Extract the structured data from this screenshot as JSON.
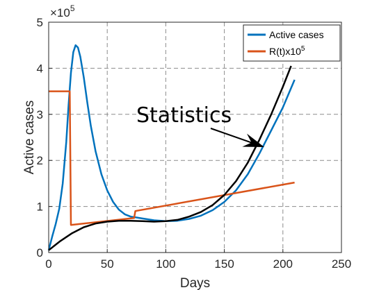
{
  "chart_data": {
    "type": "line",
    "xlabel": "Days",
    "ylabel": "Active cases",
    "xlim": [
      0,
      250
    ],
    "ylim": [
      0,
      5
    ],
    "y_multiplier": "×10",
    "y_multiplier_exp": "5",
    "x_ticks": [
      "0",
      "50",
      "100",
      "150",
      "200",
      "250"
    ],
    "y_ticks": [
      "0",
      "1",
      "2",
      "3",
      "4",
      "5"
    ],
    "grid": true,
    "legend_position": "top-right",
    "annotation": "Statistics",
    "series": [
      {
        "name": "Active cases",
        "color": "#0072BD",
        "points": [
          [
            0,
            0.05
          ],
          [
            3,
            0.35
          ],
          [
            6,
            0.62
          ],
          [
            9,
            0.95
          ],
          [
            12,
            1.5
          ],
          [
            15,
            2.4
          ],
          [
            17,
            3.2
          ],
          [
            19,
            3.9
          ],
          [
            21,
            4.35
          ],
          [
            23,
            4.5
          ],
          [
            25,
            4.45
          ],
          [
            27,
            4.25
          ],
          [
            30,
            3.8
          ],
          [
            33,
            3.25
          ],
          [
            36,
            2.75
          ],
          [
            40,
            2.2
          ],
          [
            45,
            1.7
          ],
          [
            50,
            1.35
          ],
          [
            55,
            1.1
          ],
          [
            60,
            0.93
          ],
          [
            65,
            0.83
          ],
          [
            70,
            0.78
          ],
          [
            75,
            0.76
          ],
          [
            80,
            0.74
          ],
          [
            90,
            0.7
          ],
          [
            100,
            0.68
          ],
          [
            110,
            0.69
          ],
          [
            120,
            0.73
          ],
          [
            130,
            0.8
          ],
          [
            140,
            0.92
          ],
          [
            150,
            1.1
          ],
          [
            160,
            1.35
          ],
          [
            170,
            1.7
          ],
          [
            180,
            2.15
          ],
          [
            190,
            2.65
          ],
          [
            200,
            3.15
          ],
          [
            205,
            3.45
          ],
          [
            210,
            3.75
          ]
        ]
      },
      {
        "name": "R(t)x10",
        "name_exp": "5",
        "color": "#D95319",
        "points": [
          [
            0,
            3.5
          ],
          [
            18,
            3.5
          ],
          [
            19,
            0.6
          ],
          [
            73,
            0.75
          ],
          [
            74,
            0.9
          ],
          [
            210,
            1.52
          ]
        ]
      },
      {
        "name": "Statistics",
        "color": "#000000",
        "points": [
          [
            0,
            0.05
          ],
          [
            5,
            0.15
          ],
          [
            10,
            0.25
          ],
          [
            20,
            0.42
          ],
          [
            30,
            0.55
          ],
          [
            40,
            0.63
          ],
          [
            50,
            0.67
          ],
          [
            60,
            0.69
          ],
          [
            70,
            0.69
          ],
          [
            80,
            0.68
          ],
          [
            90,
            0.67
          ],
          [
            100,
            0.68
          ],
          [
            110,
            0.71
          ],
          [
            120,
            0.78
          ],
          [
            130,
            0.88
          ],
          [
            140,
            1.03
          ],
          [
            150,
            1.25
          ],
          [
            160,
            1.55
          ],
          [
            170,
            1.95
          ],
          [
            180,
            2.45
          ],
          [
            190,
            3.0
          ],
          [
            200,
            3.6
          ],
          [
            207,
            4.05
          ]
        ]
      }
    ]
  }
}
